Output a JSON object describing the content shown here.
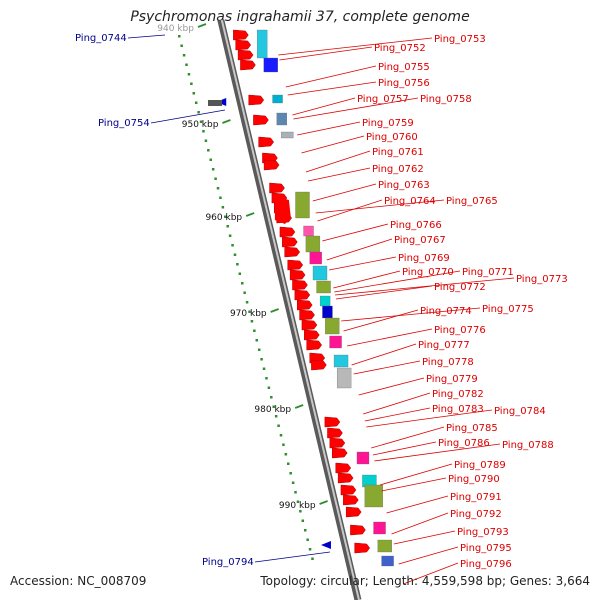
{
  "title": "Psychromonas ingrahamii 37, complete genome",
  "accession": "Accession: NC_008709",
  "summary": "Topology: circular; Length: 4,559,598 bp; Genes: 3,664",
  "colors": {
    "backbone": "#8a8a8a",
    "tick": "#2f8f2f",
    "forward_label": "#dd0000",
    "reverse_label": "#00008b",
    "gene_red": "#ff0000",
    "gene_blue": "#0000cc"
  },
  "scale_labels": [
    "940 kbp",
    "950 kbp",
    "960 kbp",
    "970 kbp",
    "980 kbp",
    "990 kbp"
  ],
  "forward_labels": [
    "Ping_0752",
    "Ping_0753",
    "Ping_0755",
    "Ping_0756",
    "Ping_0757",
    "Ping_0758",
    "Ping_0759",
    "Ping_0760",
    "Ping_0761",
    "Ping_0762",
    "Ping_0763",
    "Ping_0764",
    "Ping_0765",
    "Ping_0766",
    "Ping_0767",
    "Ping_0769",
    "Ping_0770",
    "Ping_0771",
    "Ping_0772",
    "Ping_0773",
    "Ping_0774",
    "Ping_0775",
    "Ping_0776",
    "Ping_0777",
    "Ping_0778",
    "Ping_0779",
    "Ping_0782",
    "Ping_0783",
    "Ping_0784",
    "Ping_0785",
    "Ping_0786",
    "Ping_0788",
    "Ping_0789",
    "Ping_0790",
    "Ping_0791",
    "Ping_0792",
    "Ping_0793",
    "Ping_0795",
    "Ping_0796"
  ],
  "reverse_labels": [
    "Ping_0744",
    "Ping_0754",
    "Ping_0794"
  ]
}
